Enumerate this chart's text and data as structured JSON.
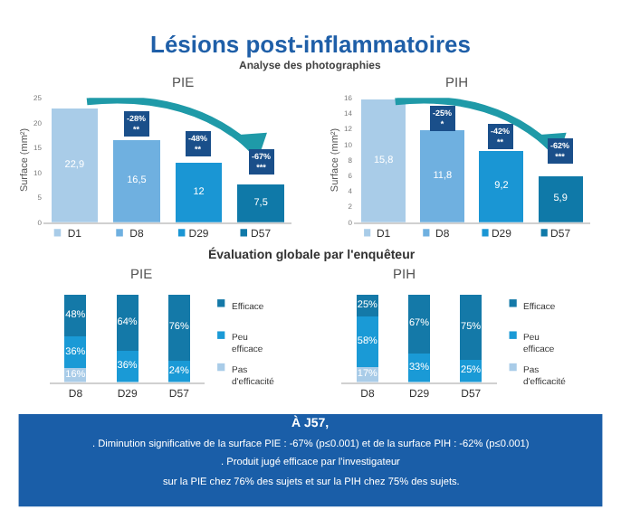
{
  "chart_data": [
    {
      "type": "bar",
      "title": "PIE",
      "ylabel": "Surface (mm²)",
      "categories": [
        "D1",
        "D8",
        "D29",
        "D57"
      ],
      "values": [
        22.9,
        16.5,
        12,
        7.5
      ],
      "value_labels": [
        "22,9",
        "16,5",
        "12",
        "7,5"
      ],
      "colors": [
        "#a9cce8",
        "#6fb0e0",
        "#1a96d4",
        "#0f79a8"
      ],
      "ylim": [
        0,
        25
      ],
      "yticks": [
        0,
        5,
        10,
        15,
        20,
        25
      ],
      "annotations": [
        "Lésions post-inflammatoires",
        "Analyse des photographies",
        "-28%\n**",
        "-48%\n**",
        "-67%\n***"
      ]
    },
    {
      "type": "bar",
      "title": "PIH",
      "ylabel": "Surface (mm²)",
      "categories": [
        "D1",
        "D8",
        "D29",
        "D57"
      ],
      "values": [
        15.8,
        11.8,
        9.2,
        5.9
      ],
      "value_labels": [
        "15,8",
        "11,8",
        "9,2",
        "5,9"
      ],
      "colors": [
        "#a9cce8",
        "#6fb0e0",
        "#1a96d4",
        "#0f79a8"
      ],
      "ylim": [
        0,
        16
      ],
      "yticks": [
        0,
        2,
        4,
        6,
        8,
        10,
        12,
        14,
        16
      ],
      "annotations": [
        "-25%\n*",
        "-42%\n**",
        "-62%\n***"
      ]
    },
    {
      "type": "bar",
      "title": "PIE",
      "stacked": true,
      "categories": [
        "D8",
        "D29",
        "D57"
      ],
      "tick_labels": "x",
      "legend": "right",
      "series": [
        {
          "name": "Pas d'efficacité",
          "color": "#a9cce8",
          "values": [
            16,
            0,
            0
          ],
          "value_labels": [
            "16%",
            null,
            null
          ]
        },
        {
          "name": "Peu efficace",
          "color": "#1a9ad6",
          "values": [
            36,
            36,
            24
          ],
          "value_labels": [
            "36%",
            "36%",
            "24%"
          ]
        },
        {
          "name": "Efficace",
          "color": "#1479a8",
          "values": [
            48,
            64,
            76
          ],
          "value_labels": [
            "48%",
            "64%",
            "76%"
          ]
        }
      ],
      "annotations": [
        "Évaluation globale par l'enquêteur",
        "À J57,",
        ". Diminution significative de la surface PIE : -67% (p≤0.001) et de la surface PIH : -62% (p≤0.001)",
        ". Produit jugé efficace par l'investigateur",
        "sur la PIE chez 76% des sujets et sur la PIH chez 75% des sujets."
      ]
    },
    {
      "type": "bar",
      "title": "PIH",
      "stacked": true,
      "categories": [
        "D8",
        "D29",
        "D57"
      ],
      "tick_labels": "x",
      "legend": "right",
      "series": [
        {
          "name": "Pas d'efficacité",
          "color": "#a9cce8",
          "values": [
            17,
            0,
            0
          ],
          "value_labels": [
            "17%",
            null,
            null
          ]
        },
        {
          "name": "Peu efficace",
          "color": "#1a9ad6",
          "values": [
            58,
            33,
            25
          ],
          "value_labels": [
            "58%",
            "33%",
            "25%"
          ]
        },
        {
          "name": "Efficace",
          "color": "#1479a8",
          "values": [
            25,
            67,
            75
          ],
          "value_labels": [
            "25%",
            "67%",
            "75%"
          ]
        }
      ]
    }
  ]
}
